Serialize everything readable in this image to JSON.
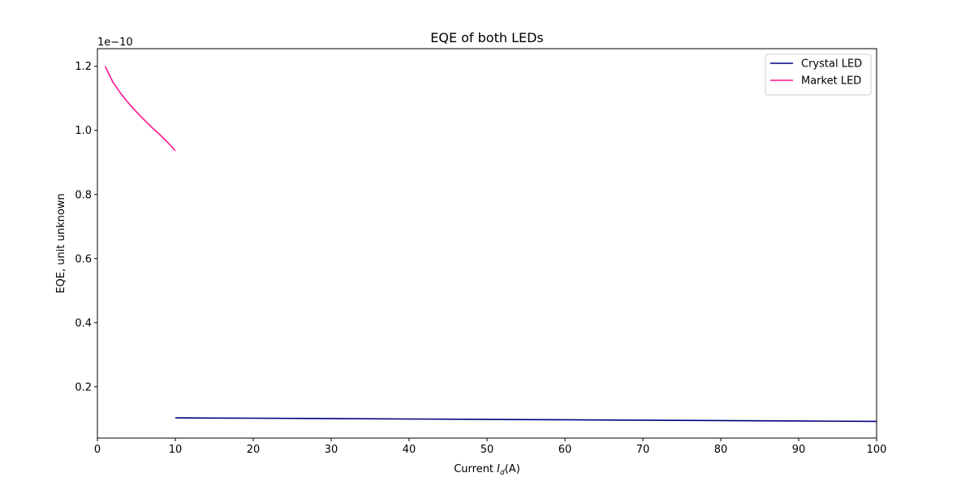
{
  "chart_data": {
    "type": "line",
    "title": "EQE of both LEDs",
    "xlabel_main": "Current ",
    "xlabel_italic": "I",
    "xlabel_sub": "d",
    "xlabel_unit": "(A)",
    "ylabel": "EQE, unit unknown",
    "y_offset_text": "1e−10",
    "y_scale": 1e-10,
    "xlim": [
      0,
      100
    ],
    "ylim": [
      0.04,
      1.255
    ],
    "xticks": [
      0,
      10,
      20,
      30,
      40,
      50,
      60,
      70,
      80,
      90,
      100
    ],
    "yticks": [
      0.2,
      0.4,
      0.6,
      0.8,
      1.0,
      1.2
    ],
    "ytick_labels": [
      "0.2",
      "0.4",
      "0.6",
      "0.8",
      "1.0",
      "1.2"
    ],
    "grid": false,
    "legend_position": "top-right",
    "series": [
      {
        "name": "Crystal LED",
        "color": "#000080",
        "x": [
          10,
          20,
          30,
          40,
          50,
          60,
          70,
          80,
          90,
          100
        ],
        "y": [
          0.103,
          0.102,
          0.1008,
          0.0995,
          0.0983,
          0.097,
          0.0958,
          0.0945,
          0.0933,
          0.092
        ]
      },
      {
        "name": "Market LED",
        "color": "#ff1493",
        "x": [
          1,
          2,
          3,
          4,
          5,
          6,
          7,
          8,
          9,
          10
        ],
        "y": [
          1.2,
          1.15,
          1.115,
          1.085,
          1.058,
          1.033,
          1.009,
          0.987,
          0.963,
          0.936
        ]
      }
    ]
  }
}
